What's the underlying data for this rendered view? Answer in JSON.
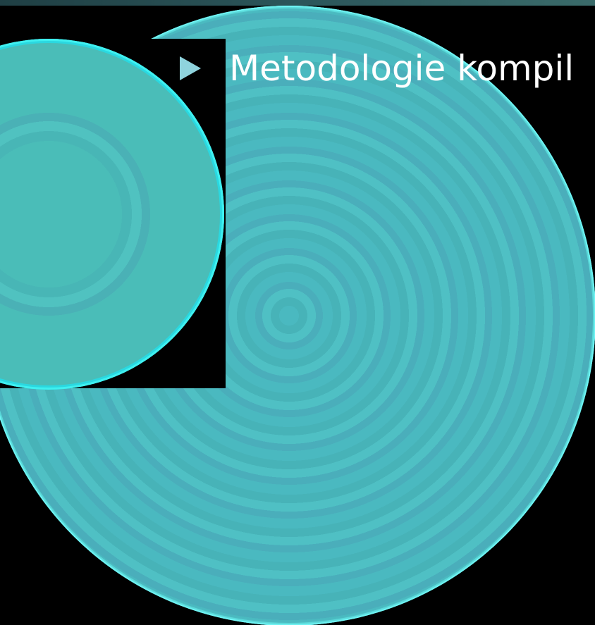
{
  "slide": {
    "bullet": {
      "text": "Metodologie kompil"
    }
  },
  "colors": {
    "background": "#000000",
    "circle_fill": "#4ab9c0",
    "circle_edge": "#6ef3f3",
    "bullet_marker": "#8fd3dd",
    "text": "#ffffff"
  }
}
